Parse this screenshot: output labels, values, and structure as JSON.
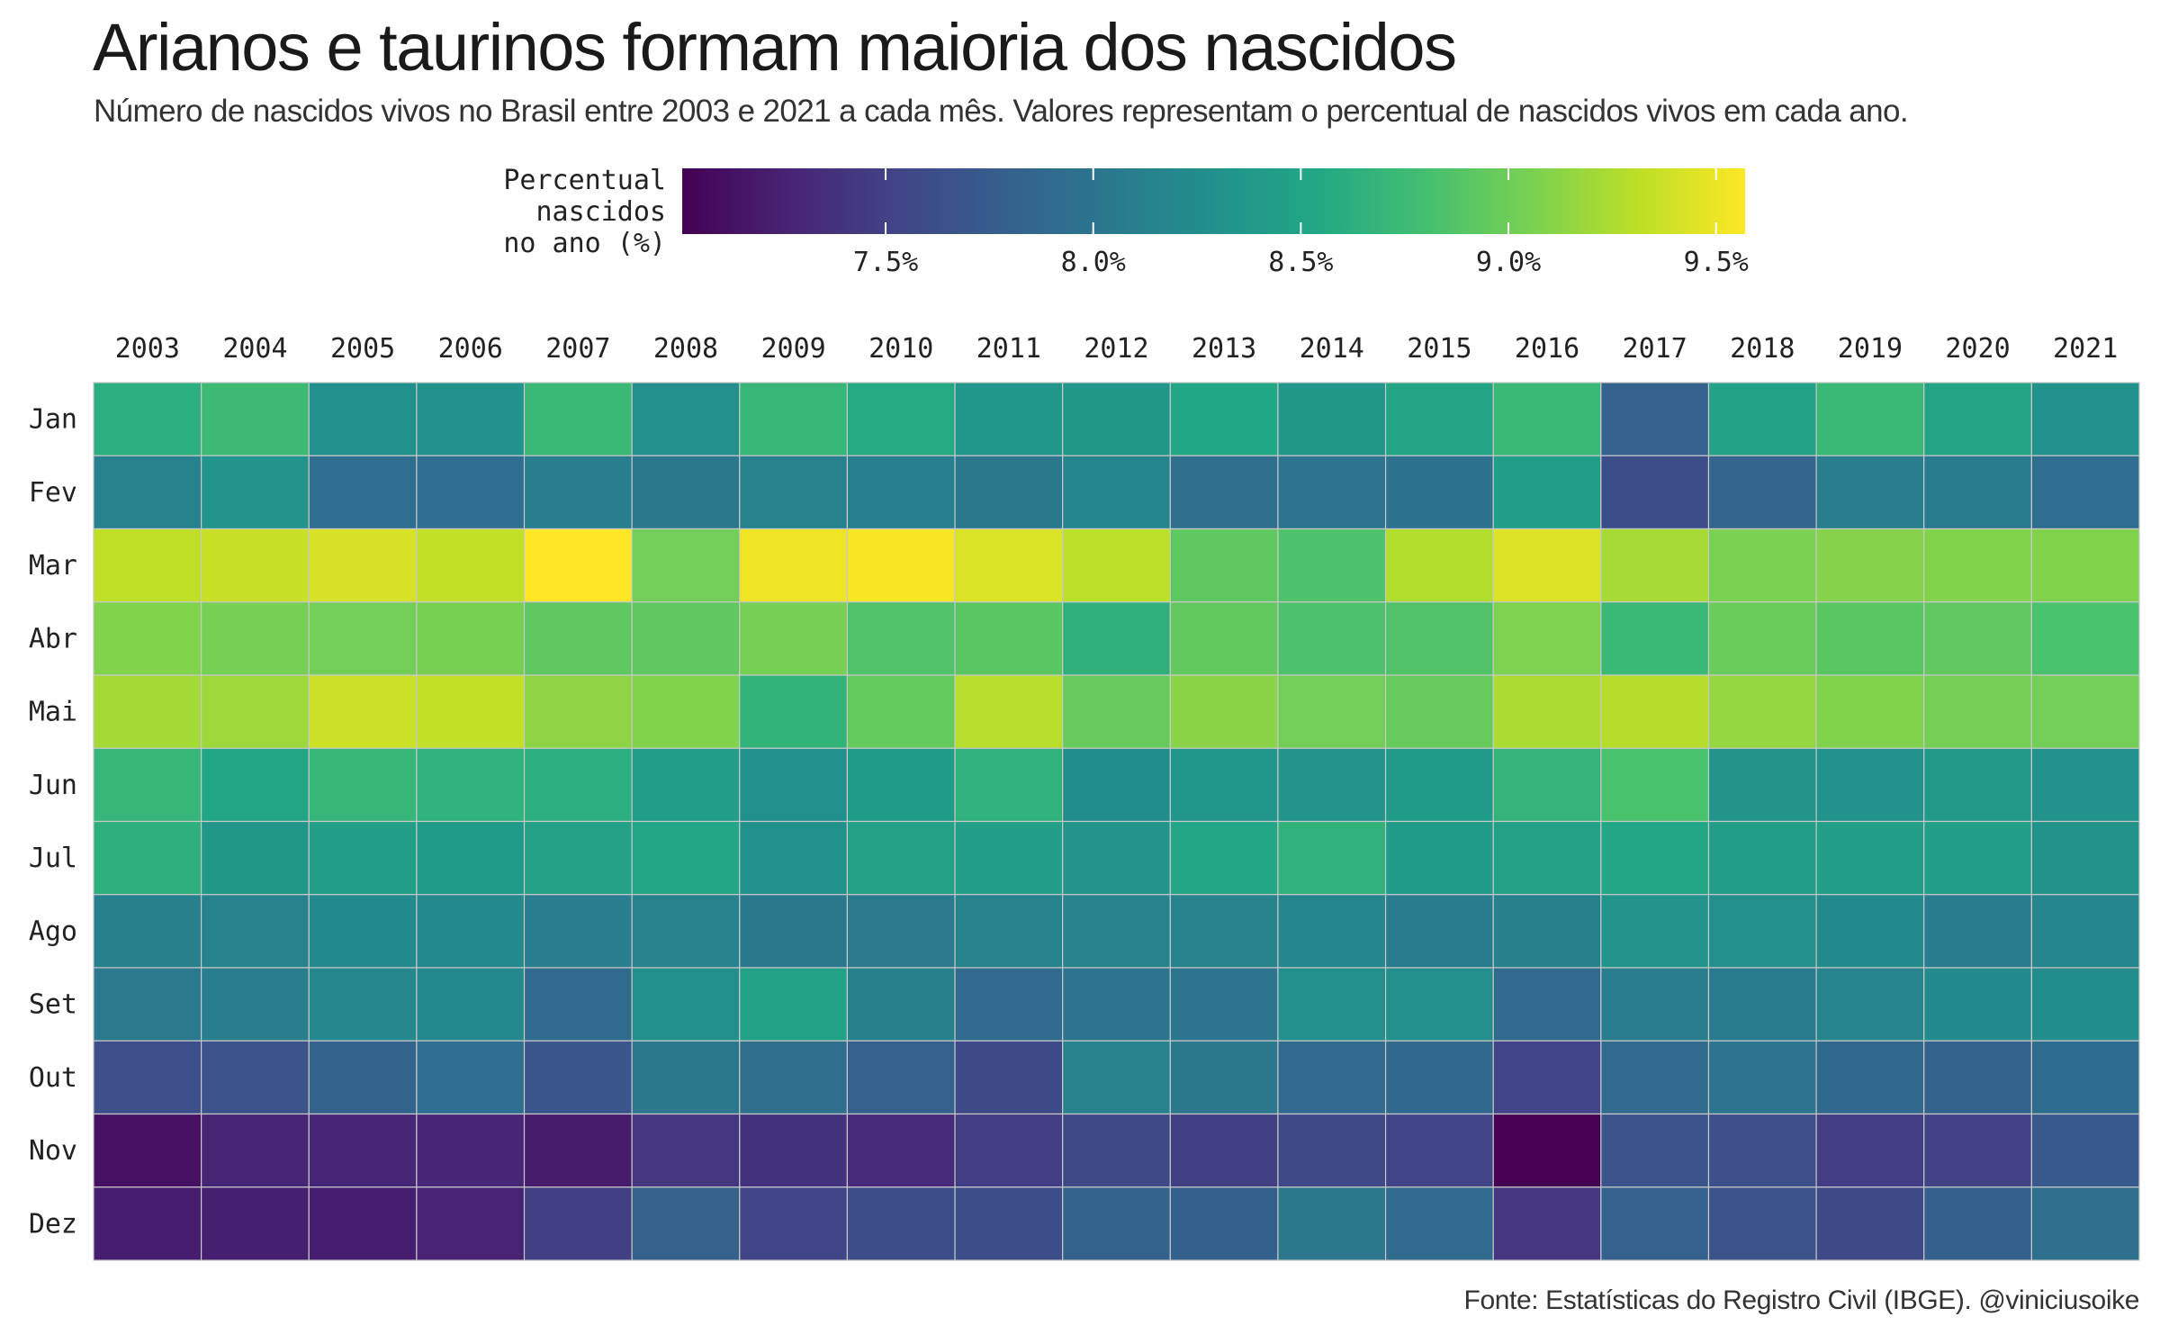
{
  "title": "Arianos e taurinos formam maioria dos nascidos",
  "subtitle": "Número de nascidos vivos no Brasil entre 2003 e 2021 a cada mês. Valores representam o percentual de nascidos vivos em cada ano.",
  "caption": "Fonte: Estatísticas do Registro Civil (IBGE). @viniciusoike",
  "chart_data": {
    "type": "heatmap",
    "title": "Arianos e taurinos formam maioria dos nascidos",
    "x": [
      "2003",
      "2004",
      "2005",
      "2006",
      "2007",
      "2008",
      "2009",
      "2010",
      "2011",
      "2012",
      "2013",
      "2014",
      "2015",
      "2016",
      "2017",
      "2018",
      "2019",
      "2020",
      "2021"
    ],
    "y": [
      "Jan",
      "Fev",
      "Mar",
      "Abr",
      "Mai",
      "Jun",
      "Jul",
      "Ago",
      "Set",
      "Out",
      "Nov",
      "Dez"
    ],
    "x_axis_position": "top",
    "legend": {
      "title_lines": [
        "Percentual",
        "nascidos",
        "no ano (%)"
      ],
      "placement": "top",
      "ticks": [
        7.5,
        8.0,
        8.5,
        9.0,
        9.5
      ],
      "tick_labels": [
        "7.5%",
        "8.0%",
        "8.5%",
        "9.0%",
        "9.5%"
      ],
      "range": [
        7.01,
        9.57
      ]
    },
    "colormap": "viridis",
    "colormap_stops": [
      "#440154",
      "#482475",
      "#414487",
      "#355f8d",
      "#2a788e",
      "#21918c",
      "#22a884",
      "#44bf70",
      "#7ad151",
      "#bddf26",
      "#fde725"
    ],
    "values": [
      [
        8.62,
        8.75,
        8.28,
        8.3,
        8.72,
        8.27,
        8.7,
        8.56,
        8.35,
        8.36,
        8.54,
        8.36,
        8.5,
        8.72,
        7.8,
        8.48,
        8.72,
        8.5,
        8.3
      ],
      [
        8.15,
        8.32,
        7.93,
        7.93,
        8.1,
        8.03,
        8.14,
        8.12,
        8.03,
        8.17,
        7.95,
        8.01,
        7.97,
        8.45,
        7.62,
        7.85,
        8.1,
        8.05,
        7.93
      ],
      [
        9.32,
        9.36,
        9.42,
        9.33,
        9.57,
        9.02,
        9.52,
        9.55,
        9.43,
        9.31,
        8.93,
        8.85,
        9.27,
        9.44,
        9.23,
        9.06,
        9.1,
        9.09,
        9.08
      ],
      [
        9.09,
        9.04,
        9.02,
        9.05,
        8.93,
        8.93,
        9.04,
        8.86,
        8.9,
        8.65,
        8.95,
        8.85,
        8.86,
        9.07,
        8.72,
        8.98,
        8.9,
        8.94,
        8.83
      ],
      [
        9.22,
        9.19,
        9.37,
        9.33,
        9.13,
        9.09,
        8.67,
        8.96,
        9.29,
        8.97,
        9.12,
        9.02,
        8.97,
        9.25,
        9.28,
        9.16,
        9.08,
        9.03,
        9.02
      ],
      [
        8.7,
        8.52,
        8.7,
        8.66,
        8.62,
        8.43,
        8.28,
        8.4,
        8.66,
        8.24,
        8.35,
        8.32,
        8.4,
        8.68,
        8.83,
        8.34,
        8.3,
        8.38,
        8.3
      ],
      [
        8.63,
        8.36,
        8.46,
        8.4,
        8.47,
        8.52,
        8.29,
        8.47,
        8.46,
        8.33,
        8.52,
        8.66,
        8.4,
        8.47,
        8.52,
        8.43,
        8.46,
        8.46,
        8.31
      ],
      [
        8.13,
        8.15,
        8.22,
        8.21,
        8.09,
        8.15,
        8.03,
        8.04,
        8.14,
        8.15,
        8.14,
        8.17,
        8.06,
        8.13,
        8.32,
        8.27,
        8.22,
        8.06,
        8.17
      ],
      [
        8.04,
        8.1,
        8.2,
        8.21,
        7.9,
        8.28,
        8.48,
        8.13,
        7.9,
        8.0,
        8.0,
        8.27,
        8.27,
        7.9,
        8.09,
        8.05,
        8.16,
        8.22,
        8.25
      ],
      [
        7.63,
        7.65,
        7.82,
        7.93,
        7.68,
        8.02,
        7.94,
        7.8,
        7.58,
        8.15,
        8.02,
        7.9,
        7.88,
        7.52,
        7.9,
        8.0,
        7.87,
        7.82,
        7.92
      ],
      [
        7.13,
        7.28,
        7.28,
        7.28,
        7.2,
        7.42,
        7.38,
        7.32,
        7.47,
        7.57,
        7.49,
        7.58,
        7.53,
        7.01,
        7.67,
        7.63,
        7.47,
        7.51,
        7.72
      ],
      [
        7.22,
        7.23,
        7.22,
        7.25,
        7.48,
        7.81,
        7.53,
        7.62,
        7.62,
        7.82,
        7.79,
        8.02,
        7.89,
        7.42,
        7.8,
        7.67,
        7.58,
        7.78,
        7.94
      ]
    ]
  }
}
